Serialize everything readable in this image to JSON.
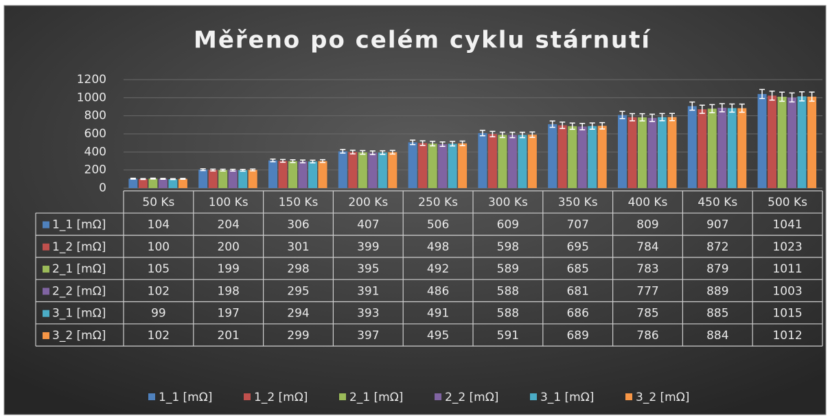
{
  "chart_data": {
    "type": "bar",
    "title": "Měřeno po celém cyklu stárnutí",
    "categories": [
      "50 Ks",
      "100 Ks",
      "150 Ks",
      "200 Ks",
      "250 Ks",
      "300 Ks",
      "350 Ks",
      "400 Ks",
      "450 Ks",
      "500 Ks"
    ],
    "series": [
      {
        "name": "1_1 [mΩ]",
        "color": "#4f81bd",
        "values": [
          104,
          204,
          306,
          407,
          506,
          609,
          707,
          809,
          907,
          1041
        ],
        "errors": [
          5,
          10,
          15,
          20,
          25,
          30,
          35,
          40,
          45,
          50
        ]
      },
      {
        "name": "1_2 [mΩ]",
        "color": "#c0504d",
        "values": [
          100,
          200,
          301,
          399,
          498,
          598,
          695,
          784,
          872,
          1023
        ],
        "errors": [
          5,
          10,
          15,
          20,
          25,
          30,
          35,
          40,
          45,
          50
        ]
      },
      {
        "name": "2_1 [mΩ]",
        "color": "#9bbb59",
        "values": [
          105,
          199,
          298,
          395,
          492,
          589,
          685,
          783,
          879,
          1011
        ],
        "errors": [
          5,
          10,
          15,
          20,
          25,
          30,
          35,
          40,
          45,
          50
        ]
      },
      {
        "name": "2_2 [mΩ]",
        "color": "#8064a2",
        "values": [
          102,
          198,
          295,
          391,
          486,
          588,
          681,
          777,
          889,
          1003
        ],
        "errors": [
          5,
          10,
          15,
          20,
          25,
          30,
          35,
          40,
          45,
          50
        ]
      },
      {
        "name": "3_1 [mΩ]",
        "color": "#4bacc6",
        "values": [
          99,
          197,
          294,
          393,
          491,
          588,
          686,
          785,
          885,
          1015
        ],
        "errors": [
          5,
          10,
          15,
          20,
          25,
          30,
          35,
          40,
          45,
          50
        ]
      },
      {
        "name": "3_2 [mΩ]",
        "color": "#f79646",
        "values": [
          102,
          201,
          299,
          397,
          495,
          591,
          689,
          786,
          884,
          1012
        ],
        "errors": [
          5,
          10,
          15,
          20,
          25,
          30,
          35,
          40,
          45,
          50
        ]
      }
    ],
    "ylim": [
      0,
      1200
    ],
    "yticks": [
      0,
      200,
      400,
      600,
      800,
      1000,
      1200
    ],
    "grid": true,
    "data_table": true,
    "legend": "bottom"
  }
}
